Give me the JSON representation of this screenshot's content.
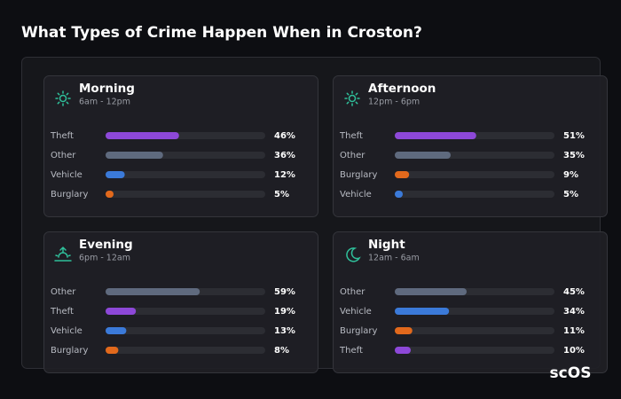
{
  "title": "What Types of Crime Happen When in Croston?",
  "watermark": "scOS",
  "chart_data": [
    {
      "type": "bar",
      "title": "Morning",
      "subtitle": "6am - 12pm",
      "categories": [
        "Theft",
        "Other",
        "Vehicle",
        "Burglary"
      ],
      "values": [
        46,
        36,
        12,
        5
      ],
      "value_labels": [
        "46%",
        "36%",
        "12%",
        "5%"
      ],
      "colors": [
        "#8d48d8",
        "#5f6a7e",
        "#3b7ad9",
        "#e2691c"
      ],
      "xlim": [
        0,
        100
      ]
    },
    {
      "type": "bar",
      "title": "Afternoon",
      "subtitle": "12pm - 6pm",
      "categories": [
        "Theft",
        "Other",
        "Burglary",
        "Vehicle"
      ],
      "values": [
        51,
        35,
        9,
        5
      ],
      "value_labels": [
        "51%",
        "35%",
        "9%",
        "5%"
      ],
      "colors": [
        "#8d48d8",
        "#5f6a7e",
        "#e2691c",
        "#3b7ad9"
      ],
      "xlim": [
        0,
        100
      ]
    },
    {
      "type": "bar",
      "title": "Evening",
      "subtitle": "6pm - 12am",
      "categories": [
        "Other",
        "Theft",
        "Vehicle",
        "Burglary"
      ],
      "values": [
        59,
        19,
        13,
        8
      ],
      "value_labels": [
        "59%",
        "19%",
        "13%",
        "8%"
      ],
      "colors": [
        "#5f6a7e",
        "#8d48d8",
        "#3b7ad9",
        "#e2691c"
      ],
      "xlim": [
        0,
        100
      ]
    },
    {
      "type": "bar",
      "title": "Night",
      "subtitle": "12am - 6am",
      "categories": [
        "Other",
        "Vehicle",
        "Burglary",
        "Theft"
      ],
      "values": [
        45,
        34,
        11,
        10
      ],
      "value_labels": [
        "45%",
        "34%",
        "11%",
        "10%"
      ],
      "colors": [
        "#5f6a7e",
        "#3b7ad9",
        "#e2691c",
        "#8d48d8"
      ],
      "xlim": [
        0,
        100
      ]
    }
  ]
}
